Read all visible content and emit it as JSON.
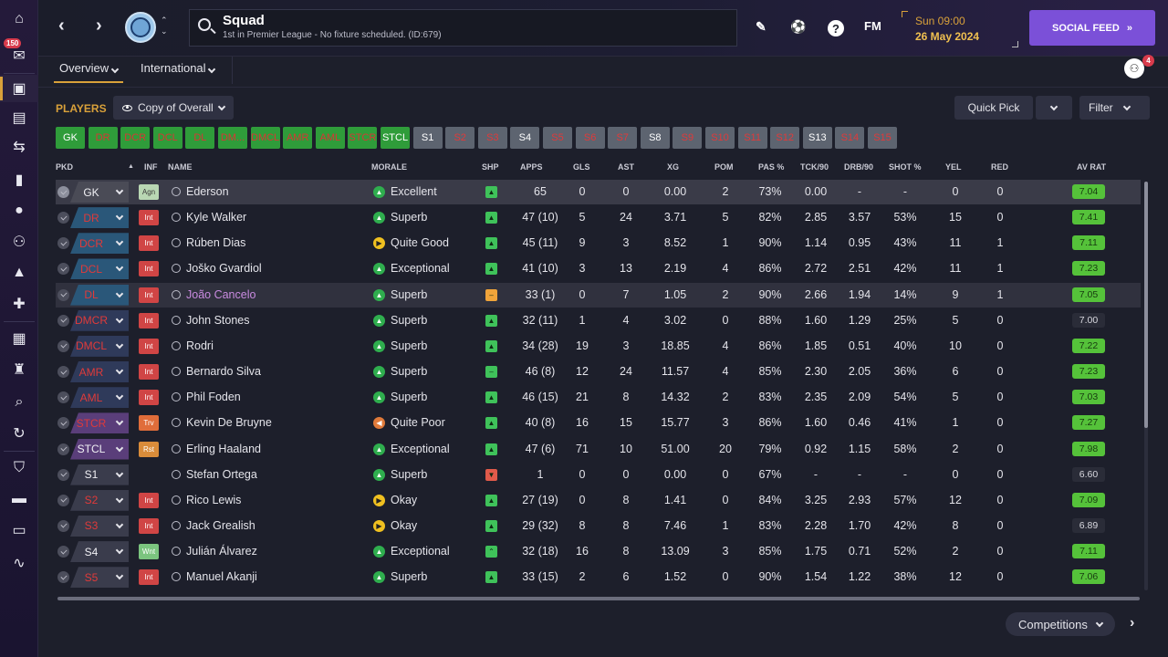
{
  "sidebar": {
    "inbox_count": "150",
    "items": [
      "home-icon",
      "inbox-icon",
      "squad-icon",
      "clipboard-icon",
      "transfers-icon",
      "dynamics-icon",
      "ball-icon",
      "staff-icon",
      "training-icon",
      "medical-icon",
      "schedule-icon",
      "trophy-icon",
      "scouting-icon",
      "refresh-icon",
      "club-icon",
      "finances-icon",
      "tickets-icon",
      "trend-icon"
    ]
  },
  "header": {
    "title": "Squad",
    "subtitle": "1st in Premier League - No fixture scheduled. (ID:679)",
    "fm_label": "FM",
    "help_label": "?",
    "day": "Sun 09:00",
    "date": "26 May 2024",
    "social_label": "SOCIAL FEED",
    "social_arrow": "»"
  },
  "subnav": {
    "tabs": [
      "Overview",
      "International"
    ],
    "people_badge": "4"
  },
  "toolbar": {
    "players_label": "PLAYERS",
    "view_label": "Copy of Overall",
    "quick_pick_label": "Quick Pick",
    "filter_label": "Filter"
  },
  "positions": [
    {
      "label": "GK",
      "style": "g f"
    },
    {
      "label": "DR",
      "style": "g"
    },
    {
      "label": "DCR",
      "style": "g"
    },
    {
      "label": "DCL",
      "style": "g"
    },
    {
      "label": "DL",
      "style": "g"
    },
    {
      "label": "DM...",
      "style": "g"
    },
    {
      "label": "DMCL",
      "style": "g"
    },
    {
      "label": "AMR",
      "style": "g"
    },
    {
      "label": "AML",
      "style": "g"
    },
    {
      "label": "STCR",
      "style": "g"
    },
    {
      "label": "STCL",
      "style": "g f"
    },
    {
      "label": "S1",
      "style": "b f"
    },
    {
      "label": "S2",
      "style": "b"
    },
    {
      "label": "S3",
      "style": "b"
    },
    {
      "label": "S4",
      "style": "b f"
    },
    {
      "label": "S5",
      "style": "b"
    },
    {
      "label": "S6",
      "style": "b"
    },
    {
      "label": "S7",
      "style": "b"
    },
    {
      "label": "S8",
      "style": "b f"
    },
    {
      "label": "S9",
      "style": "b"
    },
    {
      "label": "S10",
      "style": "b"
    },
    {
      "label": "S11",
      "style": "b"
    },
    {
      "label": "S12",
      "style": "b"
    },
    {
      "label": "S13",
      "style": "b f"
    },
    {
      "label": "S14",
      "style": "b"
    },
    {
      "label": "S15",
      "style": "b"
    }
  ],
  "table": {
    "headers": [
      "PKD",
      "INF",
      "NAME",
      "MORALE",
      "SHP",
      "APPS",
      "GLS",
      "AST",
      "XG",
      "POM",
      "PAS %",
      "TCK/90",
      "DRB/90",
      "SHOT %",
      "YEL",
      "RED",
      "AV RAT"
    ],
    "rows": [
      {
        "pos": "GK",
        "pcls": "pb-gk filled",
        "inf": "Agn",
        "icls": "inf-agn",
        "name": "Ederson",
        "morale": "Excellent",
        "mc": "gr",
        "mi": "▲",
        "shp": "gr",
        "si": "▲",
        "apps": "65",
        "gls": "0",
        "ast": "0",
        "xg": "0.00",
        "pom": "2",
        "pas": "73%",
        "tck": "0.00",
        "drb": "-",
        "shot": "-",
        "yel": "0",
        "red": "0",
        "rat": "7.04",
        "rc": "gr",
        "sel": true
      },
      {
        "pos": "DR",
        "pcls": "pb-def",
        "inf": "Int",
        "icls": "inf-int",
        "name": "Kyle Walker",
        "morale": "Superb",
        "mc": "gr",
        "mi": "▲",
        "shp": "gr",
        "si": "▲",
        "apps": "47 (10)",
        "gls": "5",
        "ast": "24",
        "xg": "3.71",
        "pom": "5",
        "pas": "82%",
        "tck": "2.85",
        "drb": "3.57",
        "shot": "53%",
        "yel": "15",
        "red": "0",
        "rat": "7.41",
        "rc": "gr"
      },
      {
        "pos": "DCR",
        "pcls": "pb-def",
        "inf": "Int",
        "icls": "inf-int",
        "name": "Rúben Dias",
        "morale": "Quite Good",
        "mc": "ye",
        "mi": "▶",
        "shp": "gr",
        "si": "▲",
        "apps": "45 (11)",
        "gls": "9",
        "ast": "3",
        "xg": "8.52",
        "pom": "1",
        "pas": "90%",
        "tck": "1.14",
        "drb": "0.95",
        "shot": "43%",
        "yel": "11",
        "red": "1",
        "rat": "7.11",
        "rc": "gr"
      },
      {
        "pos": "DCL",
        "pcls": "pb-def",
        "inf": "Int",
        "icls": "inf-int",
        "name": "Joško Gvardiol",
        "morale": "Exceptional",
        "mc": "gr",
        "mi": "▲",
        "shp": "gr",
        "si": "▲",
        "apps": "41 (10)",
        "gls": "3",
        "ast": "13",
        "xg": "2.19",
        "pom": "4",
        "pas": "86%",
        "tck": "2.72",
        "drb": "2.51",
        "shot": "42%",
        "yel": "11",
        "red": "1",
        "rat": "7.23",
        "rc": "gr"
      },
      {
        "pos": "DL",
        "pcls": "pb-def",
        "inf": "Int",
        "icls": "inf-int",
        "name": "João Cancelo",
        "morale": "Superb",
        "mc": "gr",
        "mi": "▲",
        "shp": "or",
        "si": "–",
        "apps": "33 (1)",
        "gls": "0",
        "ast": "7",
        "xg": "1.05",
        "pom": "2",
        "pas": "90%",
        "tck": "2.66",
        "drb": "1.94",
        "shot": "14%",
        "yel": "9",
        "red": "1",
        "rat": "7.05",
        "rc": "gr",
        "hl": true,
        "namecol": "#c98be0"
      },
      {
        "pos": "DMCR",
        "pcls": "pb-mid",
        "inf": "Int",
        "icls": "inf-int",
        "name": "John Stones",
        "morale": "Superb",
        "mc": "gr",
        "mi": "▲",
        "shp": "gr",
        "si": "▲",
        "apps": "32 (11)",
        "gls": "1",
        "ast": "4",
        "xg": "3.02",
        "pom": "0",
        "pas": "88%",
        "tck": "1.60",
        "drb": "1.29",
        "shot": "25%",
        "yel": "5",
        "red": "0",
        "rat": "7.00",
        "rc": "gy"
      },
      {
        "pos": "DMCL",
        "pcls": "pb-mid",
        "inf": "Int",
        "icls": "inf-int",
        "name": "Rodri",
        "morale": "Superb",
        "mc": "gr",
        "mi": "▲",
        "shp": "gr",
        "si": "▲",
        "apps": "34 (28)",
        "gls": "19",
        "ast": "3",
        "xg": "18.85",
        "pom": "4",
        "pas": "86%",
        "tck": "1.85",
        "drb": "0.51",
        "shot": "40%",
        "yel": "10",
        "red": "0",
        "rat": "7.22",
        "rc": "gr"
      },
      {
        "pos": "AMR",
        "pcls": "pb-mid",
        "inf": "Int",
        "icls": "inf-int",
        "name": "Bernardo Silva",
        "morale": "Superb",
        "mc": "gr",
        "mi": "▲",
        "shp": "gr",
        "si": "–",
        "apps": "46 (8)",
        "gls": "12",
        "ast": "24",
        "xg": "11.57",
        "pom": "4",
        "pas": "85%",
        "tck": "2.30",
        "drb": "2.05",
        "shot": "36%",
        "yel": "6",
        "red": "0",
        "rat": "7.23",
        "rc": "gr"
      },
      {
        "pos": "AML",
        "pcls": "pb-mid",
        "inf": "Int",
        "icls": "inf-int",
        "name": "Phil Foden",
        "morale": "Superb",
        "mc": "gr",
        "mi": "▲",
        "shp": "gr",
        "si": "▲",
        "apps": "46 (15)",
        "gls": "21",
        "ast": "8",
        "xg": "14.32",
        "pom": "2",
        "pas": "83%",
        "tck": "2.35",
        "drb": "2.09",
        "shot": "54%",
        "yel": "5",
        "red": "0",
        "rat": "7.03",
        "rc": "gr"
      },
      {
        "pos": "STCR",
        "pcls": "pb-att",
        "inf": "Trv",
        "icls": "inf-trv",
        "name": "Kevin De Bruyne",
        "morale": "Quite Poor",
        "mc": "or",
        "mi": "◀",
        "shp": "gr",
        "si": "▲",
        "apps": "40 (8)",
        "gls": "16",
        "ast": "15",
        "xg": "15.77",
        "pom": "3",
        "pas": "86%",
        "tck": "1.60",
        "drb": "0.46",
        "shot": "41%",
        "yel": "1",
        "red": "0",
        "rat": "7.27",
        "rc": "gr"
      },
      {
        "pos": "STCL",
        "pcls": "pb-att filled",
        "inf": "Rst",
        "icls": "inf-rst",
        "name": "Erling Haaland",
        "morale": "Exceptional",
        "mc": "gr",
        "mi": "▲",
        "shp": "gr",
        "si": "▲",
        "apps": "47 (6)",
        "gls": "71",
        "ast": "10",
        "xg": "51.00",
        "pom": "20",
        "pas": "79%",
        "tck": "0.92",
        "drb": "1.15",
        "shot": "58%",
        "yel": "2",
        "red": "0",
        "rat": "7.98",
        "rc": "gr"
      },
      {
        "pos": "S1",
        "pcls": "pb-sub filled",
        "inf": "",
        "icls": "",
        "name": "Stefan Ortega",
        "morale": "Superb",
        "mc": "gr",
        "mi": "▲",
        "shp": "rd",
        "si": "▼",
        "apps": "1",
        "gls": "0",
        "ast": "0",
        "xg": "0.00",
        "pom": "0",
        "pas": "67%",
        "tck": "-",
        "drb": "-",
        "shot": "-",
        "yel": "0",
        "red": "0",
        "rat": "6.60",
        "rc": "gy"
      },
      {
        "pos": "S2",
        "pcls": "pb-sub",
        "inf": "Int",
        "icls": "inf-int",
        "name": "Rico Lewis",
        "morale": "Okay",
        "mc": "ye",
        "mi": "▶",
        "shp": "gr",
        "si": "▲",
        "apps": "27 (19)",
        "gls": "0",
        "ast": "8",
        "xg": "1.41",
        "pom": "0",
        "pas": "84%",
        "tck": "3.25",
        "drb": "2.93",
        "shot": "57%",
        "yel": "12",
        "red": "0",
        "rat": "7.09",
        "rc": "gr"
      },
      {
        "pos": "S3",
        "pcls": "pb-sub",
        "inf": "Int",
        "icls": "inf-int",
        "name": "Jack Grealish",
        "morale": "Okay",
        "mc": "ye",
        "mi": "▶",
        "shp": "gr",
        "si": "▲",
        "apps": "29 (32)",
        "gls": "8",
        "ast": "8",
        "xg": "7.46",
        "pom": "1",
        "pas": "83%",
        "tck": "2.28",
        "drb": "1.70",
        "shot": "42%",
        "yel": "8",
        "red": "0",
        "rat": "6.89",
        "rc": "gy"
      },
      {
        "pos": "S4",
        "pcls": "pb-sub filled",
        "inf": "Wnt",
        "icls": "inf-wnt",
        "name": "Julián Álvarez",
        "morale": "Exceptional",
        "mc": "gr",
        "mi": "▲",
        "shp": "gr",
        "si": "⌃",
        "apps": "32 (18)",
        "gls": "16",
        "ast": "8",
        "xg": "13.09",
        "pom": "3",
        "pas": "85%",
        "tck": "1.75",
        "drb": "0.71",
        "shot": "52%",
        "yel": "2",
        "red": "0",
        "rat": "7.11",
        "rc": "gr"
      },
      {
        "pos": "S5",
        "pcls": "pb-sub",
        "inf": "Int",
        "icls": "inf-int",
        "name": "Manuel Akanji",
        "morale": "Superb",
        "mc": "gr",
        "mi": "▲",
        "shp": "gr",
        "si": "▲",
        "apps": "33 (15)",
        "gls": "2",
        "ast": "6",
        "xg": "1.52",
        "pom": "0",
        "pas": "90%",
        "tck": "1.54",
        "drb": "1.22",
        "shot": "38%",
        "yel": "12",
        "red": "0",
        "rat": "7.06",
        "rc": "gr"
      }
    ]
  },
  "footer": {
    "competitions_label": "Competitions",
    "next_arrow": "›"
  }
}
